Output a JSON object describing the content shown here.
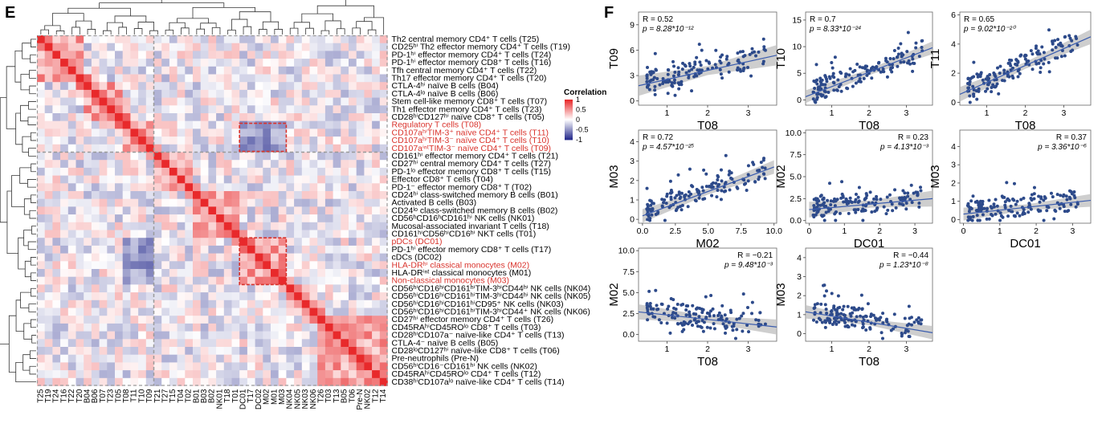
{
  "panels": {
    "E": {
      "letter": "E",
      "legend": {
        "title": "Correlation",
        "ticks": [
          "1",
          "0.5",
          "0",
          "-0.5",
          "-1"
        ],
        "colors": {
          "pos": "#e8292b",
          "neu": "#ffffff",
          "neg": "#252a8c"
        }
      },
      "row_labels": [
        "Th2 central memory CD4⁺ T cells (T25)",
        "CD25ʰⁱ Th2 effector memory CD4⁺ T cells (T19)",
        "PD-1ʰⁱ effector memory CD4⁺ T cells (T24)",
        "PD-1ʰⁱ effector memory CD8⁺ T cells (T16)",
        "Tfh central memory CD4⁺ T cells (T22)",
        "Th17 effector memory CD4⁺ T cells (T20)",
        "CTLA-4ʰⁱ naïve B cells (B04)",
        "CTLA-4ˡᵒ naïve B cells (B06)",
        "Stem cell-like memory CD8⁺ T cells (T07)",
        "Th1 effector memory CD4⁺ T cells (T23)",
        "CD28ʰⁱCD127ʰⁱ naïve CD8⁺ T cells (T05)",
        "Regulatory T cells (T08)",
        "CD107aʰⁱTIM-3⁺ naïve CD4⁺ T cells (T11)",
        "CD107aʰⁱTIM-3⁻ naïve CD4⁺ T cells (T10)",
        "CD107aⁱⁿᵗTIM-3⁻ naïve CD4⁺ T cells (T09)",
        "CD161ʰⁱ effector memory CD4⁺ T cells (T21)",
        "CD27ʰⁱ central memory CD4⁺ T cells (T27)",
        "PD-1ˡᵒ effector memory CD8⁺ T cells (T15)",
        "Effector CD8⁺ T cells (T04)",
        "PD-1⁻ effector memory CD8⁺ T (T02)",
        "CD24ʰⁱ class-switched memory B cells (B01)",
        "Activated B cells (B03)",
        "CD24ˡᵒ class-switched memory B cells (B02)",
        "CD56ʰCD16ʰCD161ʰⁱ NK cells (NK01)",
        "Mucosal-associated invariant T cells (T18)",
        "CD161ʰⁱCD56ʰⁱCD16ʰⁱ NKT cells (T01)",
        "pDCs (DC01)",
        "PD-1ʰⁱ effector memory CD8⁺ T cells (T17)",
        "cDCs (DC02)",
        "HLA-DRʰⁱ classical monocytes (M02)",
        "HLA-DRⁱⁿᵗ classical monocytes (M01)",
        "Non-classical monocytes (M03)",
        "CD56ʰⁱCD16ʰⁱCD161ʰⁱTIM-3ʰⁱCD44ʰⁱ NK cells (NK04)",
        "CD56ʰⁱCD16ʰⁱCD161ʰⁱTIM-3ʰⁱCD44ʰⁱ NK cells (NK05)",
        "CD56ʰⁱCD16ʰⁱCD161ʰⁱCD95⁺ NK cells (NK03)",
        "CD56ʰⁱCD16ʰⁱCD161ʰⁱTIM-3ʰⁱCD44⁺ NK cells (NK06)",
        "CD27ʰⁱ effector memory CD4⁺ T cells (T26)",
        "CD45RAʰⁱCD45ROˡᵒ CD8⁺ T cells (T03)",
        "CD28ʰⁱCD107a⁻ naïve-like CD4⁺ T cells (T13)",
        "CTLA-4⁻ naïve B cells (B05)",
        "CD28ˡᵒCD127ʰⁱ naïve-like CD8⁺ T cells (T06)",
        "Pre-neutrophils (Pre-N)",
        "CD56ʰⁱCD16⁻CD161ʰⁱ NK cells (NK02)",
        "CD45RAʰⁱCD45ROˡᵒ CD4⁺ T cells (T12)",
        "CD38ʰⁱCD107aˡᵒ naïve-like CD4⁺ T cells (T14)"
      ],
      "highlighted_rows": [
        11,
        12,
        13,
        14,
        26,
        29,
        31
      ],
      "col_labels": [
        "T25",
        "T19",
        "T24",
        "T16",
        "T22",
        "T20",
        "B04",
        "B06",
        "T07",
        "T23",
        "T05",
        "T08",
        "T11",
        "T10",
        "T09",
        "T21",
        "T27",
        "T15",
        "T04",
        "T02",
        "B01",
        "B03",
        "B02",
        "NK01",
        "T18",
        "T01",
        "DC01",
        "T17",
        "DC02",
        "M02",
        "M01",
        "M03",
        "NK04",
        "NK05",
        "NK03",
        "NK06",
        "T26",
        "T03",
        "T13",
        "B05",
        "T06",
        "Pre-N",
        "NK02",
        "T12",
        "T14"
      ]
    },
    "F": {
      "letter": "F",
      "plots": [
        {
          "xlabel": "T08",
          "ylabel": "T09",
          "R": "R = 0.52",
          "p": "p = 8.28*10⁻¹²",
          "stat_pos": "left",
          "xlim": [
            0.3,
            3.7
          ],
          "ylim": [
            -0.5,
            10.5
          ],
          "xticks": [
            1,
            2,
            3
          ],
          "yticks": [
            0,
            3,
            6,
            9
          ],
          "fit": [
            [
              0.3,
              1.8
            ],
            [
              3.7,
              5.4
            ]
          ],
          "ci": 1.2
        },
        {
          "xlabel": "T08",
          "ylabel": "T10",
          "R": "R = 0.7",
          "p": "p = 8.33*10⁻²⁴",
          "stat_pos": "left",
          "xlim": [
            0.3,
            3.7
          ],
          "ylim": [
            -1,
            16.5
          ],
          "xticks": [
            1,
            2,
            3
          ],
          "yticks": [
            0,
            5,
            10,
            15
          ],
          "fit": [
            [
              0.3,
              0.6
            ],
            [
              3.7,
              9.8
            ]
          ],
          "ci": 1.2
        },
        {
          "xlabel": "T08",
          "ylabel": "T11",
          "R": "R = 0.65",
          "p": "p = 9.02*10⁻²⁰",
          "stat_pos": "left",
          "xlim": [
            0.3,
            3.7
          ],
          "ylim": [
            -0.2,
            6.2
          ],
          "xticks": [
            1,
            2,
            3
          ],
          "yticks": [
            0,
            2,
            4,
            6
          ],
          "fit": [
            [
              0.3,
              0.55
            ],
            [
              3.7,
              4.5
            ]
          ],
          "ci": 0.5
        },
        {
          "xlabel": "M02",
          "ylabel": "M03",
          "R": "R = 0.72",
          "p": "p = 4.57*10⁻²⁵",
          "stat_pos": "left",
          "xlim": [
            -0.3,
            10.2
          ],
          "ylim": [
            -0.2,
            4.6
          ],
          "xticks": [
            0.0,
            2.5,
            5.0,
            7.5,
            10.0
          ],
          "yticks": [
            0,
            1,
            2,
            3,
            4
          ],
          "fit": [
            [
              0.0,
              0.18
            ],
            [
              10.0,
              2.7
            ]
          ],
          "ci": 0.35
        },
        {
          "xlabel": "DC01",
          "ylabel": "M02",
          "R": "R = 0.23",
          "p": "p = 4.13*10⁻³",
          "stat_pos": "right",
          "xlim": [
            -0.1,
            3.5
          ],
          "ylim": [
            -0.3,
            10.3
          ],
          "xticks": [
            0,
            1,
            2,
            3
          ],
          "yticks": [
            0.0,
            2.5,
            5.0,
            7.5,
            10.0
          ],
          "fit": [
            [
              0.0,
              1.25
            ],
            [
              3.5,
              2.5
            ]
          ],
          "ci": 0.9
        },
        {
          "xlabel": "DC01",
          "ylabel": "M03",
          "R": "R = 0.37",
          "p": "p = 3.36*10⁻⁶",
          "stat_pos": "right",
          "xlim": [
            -0.1,
            3.5
          ],
          "ylim": [
            -0.2,
            4.9
          ],
          "xticks": [
            0,
            1,
            2,
            3
          ],
          "yticks": [
            0,
            1,
            2,
            3,
            4
          ],
          "fit": [
            [
              0.0,
              0.3
            ],
            [
              3.5,
              1.05
            ]
          ],
          "ci": 0.35
        },
        {
          "xlabel": "T08",
          "ylabel": "M02",
          "R": "R = −0.21",
          "p": "p = 9.48*10⁻³",
          "stat_pos": "right",
          "xlim": [
            0.3,
            3.7
          ],
          "ylim": [
            -0.8,
            10.3
          ],
          "xticks": [
            1,
            2,
            3
          ],
          "yticks": [
            0.0,
            2.5,
            5.0,
            7.5,
            10.0
          ],
          "fit": [
            [
              0.3,
              2.7
            ],
            [
              3.7,
              0.9
            ]
          ],
          "ci": 0.9
        },
        {
          "xlabel": "T08",
          "ylabel": "M03",
          "R": "R = −0.44",
          "p": "p = 1.23*10⁻⁸",
          "stat_pos": "right",
          "xlim": [
            0.3,
            3.7
          ],
          "ylim": [
            -0.4,
            4.5
          ],
          "xticks": [
            1,
            2,
            3
          ],
          "yticks": [
            0,
            1,
            2,
            3,
            4
          ],
          "fit": [
            [
              0.3,
              1.15
            ],
            [
              3.7,
              0.05
            ]
          ],
          "ci": 0.35
        }
      ]
    }
  }
}
